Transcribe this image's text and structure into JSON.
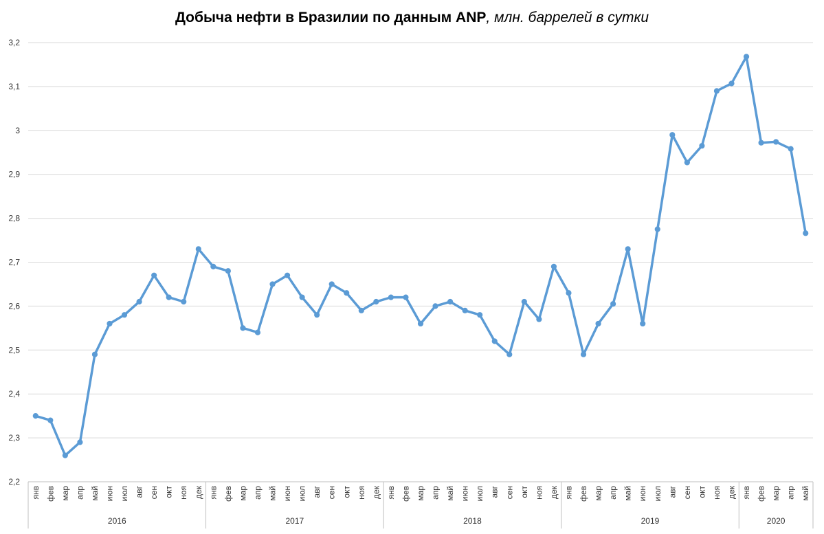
{
  "title": {
    "bold": "Добыча нефти в Бразилии по данным ANP",
    "italic": ", млн. баррелей в сутки"
  },
  "chart_data": {
    "type": "line",
    "title": "Добыча нефти в Бразилии по данным ANP, млн. баррелей в сутки",
    "xlabel": "",
    "ylabel": "",
    "ylim": [
      2.2,
      3.2
    ],
    "yticks": [
      "2,2",
      "2,3",
      "2,4",
      "2,5",
      "2,6",
      "2,7",
      "2,8",
      "2,9",
      "3",
      "3,1",
      "3,2"
    ],
    "grid": true,
    "legend": "none",
    "line_color": "#5b9bd5",
    "years": [
      {
        "label": "2016",
        "months": 12
      },
      {
        "label": "2017",
        "months": 12
      },
      {
        "label": "2018",
        "months": 12
      },
      {
        "label": "2019",
        "months": 12
      },
      {
        "label": "2020",
        "months": 5
      }
    ],
    "categories": [
      "янв",
      "фев",
      "мар",
      "апр",
      "май",
      "июн",
      "июл",
      "авг",
      "сен",
      "окт",
      "ноя",
      "дек",
      "янв",
      "фев",
      "мар",
      "апр",
      "май",
      "июн",
      "июл",
      "авг",
      "сен",
      "окт",
      "ноя",
      "дек",
      "янв",
      "фев",
      "мар",
      "апр",
      "май",
      "июн",
      "июл",
      "авг",
      "сен",
      "окт",
      "ноя",
      "дек",
      "янв",
      "фев",
      "мар",
      "апр",
      "май",
      "июн",
      "июл",
      "авг",
      "сен",
      "окт",
      "ноя",
      "дек",
      "янв",
      "фев",
      "мар",
      "апр",
      "май"
    ],
    "series": [
      {
        "values": [
          2.35,
          2.34,
          2.26,
          2.29,
          2.49,
          2.56,
          2.58,
          2.61,
          2.67,
          2.62,
          2.61,
          2.73,
          2.69,
          2.68,
          2.55,
          2.54,
          2.65,
          2.67,
          2.62,
          2.58,
          2.65,
          2.63,
          2.59,
          2.61,
          2.62,
          2.62,
          2.56,
          2.6,
          2.61,
          2.59,
          2.58,
          2.52,
          2.49,
          2.61,
          2.57,
          2.69,
          2.63,
          2.49,
          2.56,
          2.605,
          2.73,
          2.56,
          2.775,
          2.99,
          2.927,
          2.965,
          3.09,
          3.107,
          3.168,
          2.972,
          2.974,
          2.958,
          2.766
        ]
      }
    ]
  }
}
